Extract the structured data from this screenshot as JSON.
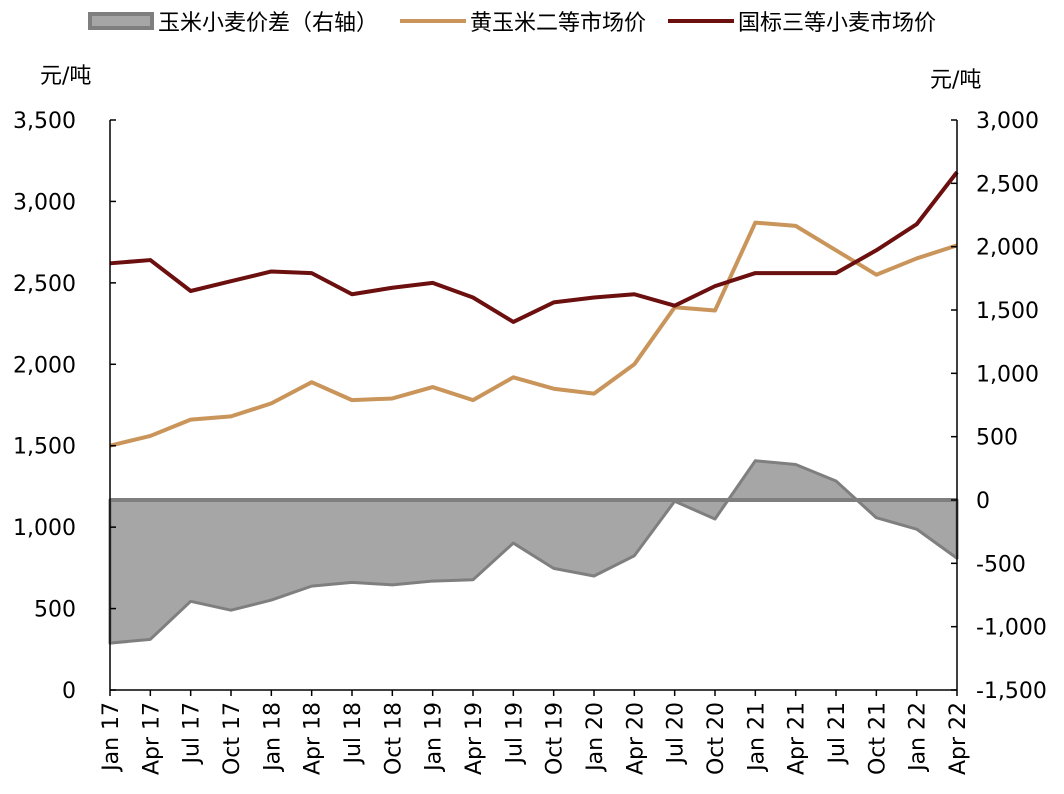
{
  "legend": {
    "spread": "玉米小麦价差（右轴）",
    "corn": "黄玉米二等市场价",
    "wheat": "国标三等小麦市场价"
  },
  "units": {
    "left": "元/吨",
    "right": "元/吨"
  },
  "colors": {
    "spread_fill": "#a6a6a6",
    "spread_line": "#7f7f7f",
    "corn": "#c9955a",
    "wheat": "#6b0f0f",
    "axis": "#000000"
  },
  "chart_data": {
    "type": "line",
    "x": [
      "Jan 17",
      "Apr 17",
      "Jul 17",
      "Oct 17",
      "Jan 18",
      "Apr 18",
      "Jul 18",
      "Oct 18",
      "Jan 19",
      "Apr 19",
      "Jul 19",
      "Oct 19",
      "Jan 20",
      "Apr 20",
      "Jul 20",
      "Oct 20",
      "Jan 21",
      "Apr 21",
      "Jul 21",
      "Oct 21",
      "Jan 22",
      "Apr 22"
    ],
    "x_tick_labels": [
      "Jan 17",
      "Apr 17",
      "Jul 17",
      "Oct 17",
      "Jan 18",
      "Apr 18",
      "Jul 18",
      "Oct 18",
      "Jan 19",
      "Apr 19",
      "Jul 19",
      "Oct 19",
      "Jan 20",
      "Apr 20",
      "Jul 20",
      "Oct 20",
      "Jan 21",
      "Apr 21",
      "Jul 21",
      "Oct 21",
      "Jan 22",
      "Apr 22"
    ],
    "y_left": {
      "ylim": [
        0,
        3500
      ],
      "tick_labels": [
        "0",
        "500",
        "1,000",
        "1,500",
        "2,000",
        "2,500",
        "3,000",
        "3,500"
      ]
    },
    "y_right": {
      "ylim": [
        -1500,
        3000
      ],
      "tick_labels": [
        "-1,500",
        "-1,000",
        "-500",
        "0",
        "500",
        "1,000",
        "1,500",
        "2,000",
        "2,500",
        "3,000"
      ]
    },
    "series": [
      {
        "name": "黄玉米二等市场价",
        "axis": "left",
        "type": "line",
        "values": [
          1500,
          1560,
          1660,
          1680,
          1760,
          1890,
          1780,
          1790,
          1860,
          1780,
          1920,
          1850,
          1820,
          2000,
          2350,
          2330,
          2870,
          2850,
          2700,
          2550,
          2650,
          2730
        ]
      },
      {
        "name": "国标三等小麦市场价",
        "axis": "left",
        "type": "line",
        "values": [
          2620,
          2640,
          2450,
          2510,
          2570,
          2560,
          2430,
          2470,
          2500,
          2410,
          2260,
          2380,
          2410,
          2430,
          2360,
          2480,
          2560,
          2560,
          2560,
          2700,
          2860,
          3180
        ]
      },
      {
        "name": "玉米小麦价差（右轴）",
        "axis": "right",
        "type": "area",
        "values": [
          -1130,
          -1100,
          -800,
          -870,
          -790,
          -680,
          -650,
          -670,
          -640,
          -630,
          -340,
          -540,
          -600,
          -440,
          -10,
          -150,
          310,
          280,
          150,
          -140,
          -230,
          -460
        ]
      }
    ]
  }
}
